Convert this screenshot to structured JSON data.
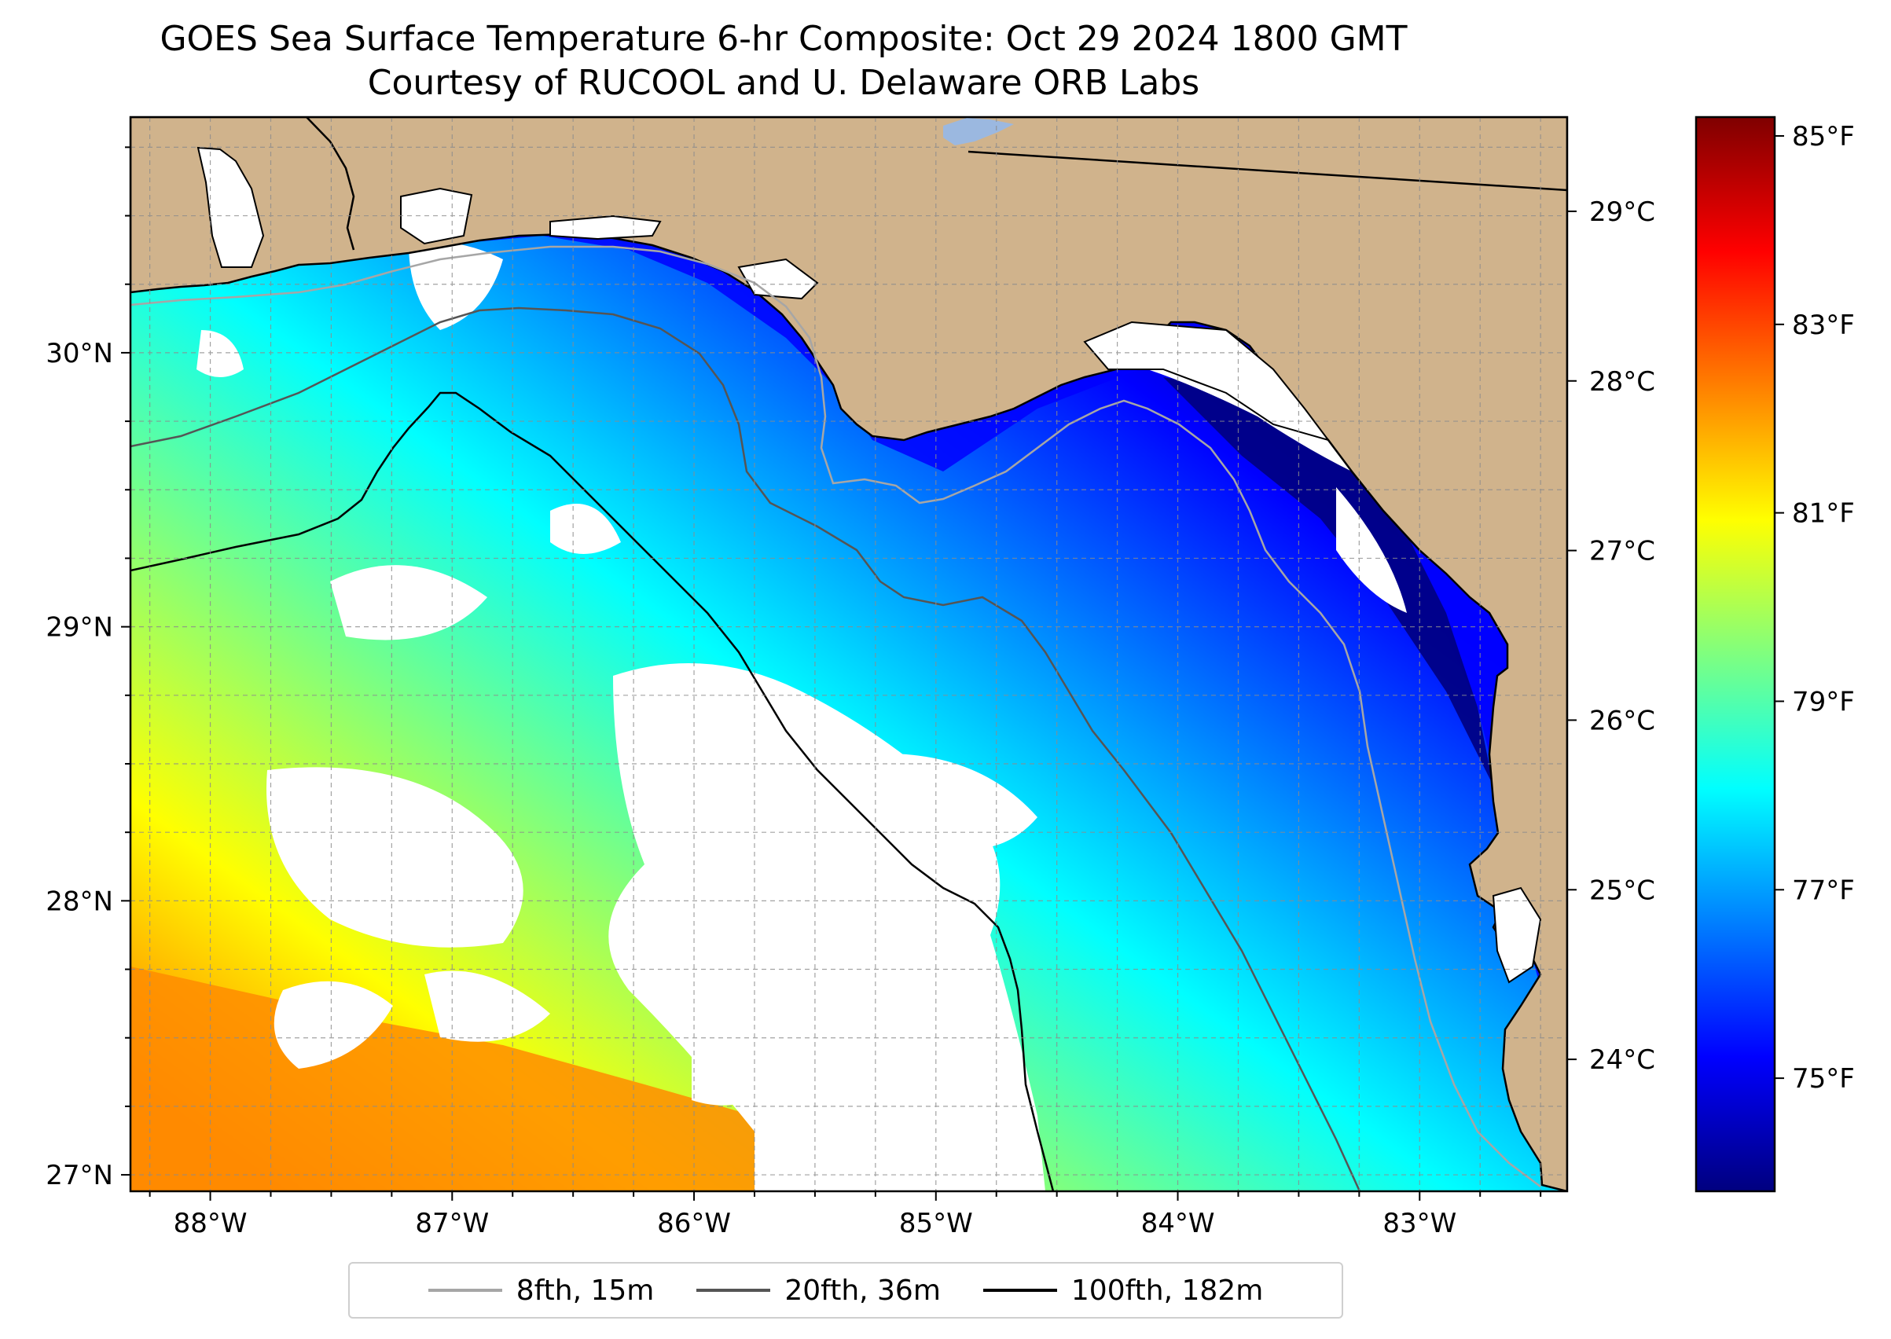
{
  "title": {
    "line1": "GOES Sea Surface Temperature 6-hr Composite: Oct 29 2024 1800 GMT",
    "line2": "Courtesy of RUCOOL and U. Delaware ORB Labs"
  },
  "map": {
    "lon_range": [
      -88.33,
      -82.39
    ],
    "lat_range": [
      26.94,
      30.86
    ],
    "land_color": "#d0b38c",
    "cloud_color": "#ffffff",
    "lake_color": "#9bb8e0",
    "lat_ticks": [
      {
        "value": 27,
        "label": "27°N"
      },
      {
        "value": 28,
        "label": "28°N"
      },
      {
        "value": 29,
        "label": "29°N"
      },
      {
        "value": 30,
        "label": "30°N"
      }
    ],
    "lon_ticks": [
      {
        "value": -88,
        "label": "88°W"
      },
      {
        "value": -87,
        "label": "87°W"
      },
      {
        "value": -86,
        "label": "86°W"
      },
      {
        "value": -85,
        "label": "85°W"
      },
      {
        "value": -84,
        "label": "84°W"
      },
      {
        "value": -83,
        "label": "83°W"
      }
    ]
  },
  "colorbar": {
    "colormap": "jet",
    "f_range": [
      73.8,
      85.2
    ],
    "colors": [
      "#00007f",
      "#0000ff",
      "#007fff",
      "#00ffff",
      "#7fff7f",
      "#ffff00",
      "#ff7f00",
      "#ff0000",
      "#7f0000"
    ],
    "fahrenheit_ticks": [
      {
        "value": 75,
        "label": "75°F"
      },
      {
        "value": 77,
        "label": "77°F"
      },
      {
        "value": 79,
        "label": "79°F"
      },
      {
        "value": 81,
        "label": "81°F"
      },
      {
        "value": 83,
        "label": "83°F"
      },
      {
        "value": 85,
        "label": "85°F"
      }
    ],
    "celsius_ticks": [
      {
        "value": 24,
        "label": "24°C"
      },
      {
        "value": 25,
        "label": "25°C"
      },
      {
        "value": 26,
        "label": "26°C"
      },
      {
        "value": 27,
        "label": "27°C"
      },
      {
        "value": 28,
        "label": "28°C"
      },
      {
        "value": 29,
        "label": "29°C"
      }
    ]
  },
  "legend": {
    "items": [
      {
        "label": "8fth, 15m",
        "color": "#a6a6a6"
      },
      {
        "label": "20fth, 36m",
        "color": "#555555"
      },
      {
        "label": "100fth, 182m",
        "color": "#000000"
      }
    ]
  }
}
